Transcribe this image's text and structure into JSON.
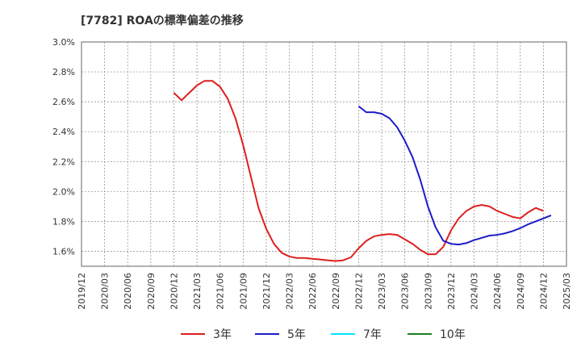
{
  "chart_data": {
    "type": "line",
    "title": "[7782]  ROAの標準偏差の推移",
    "xlabel": "",
    "ylabel": "",
    "ylim": [
      1.5,
      3.0
    ],
    "yticks": [
      1.6,
      1.8,
      2.0,
      2.2,
      2.4,
      2.6,
      2.8,
      3.0
    ],
    "ytick_labels": [
      "1.6%",
      "1.8%",
      "2.0%",
      "2.2%",
      "2.4%",
      "2.6%",
      "2.8%",
      "3.0%"
    ],
    "xtick_labels": [
      "2019/12",
      "2020/03",
      "2020/06",
      "2020/09",
      "2020/12",
      "2021/03",
      "2021/06",
      "2021/09",
      "2021/12",
      "2022/03",
      "2022/06",
      "2022/09",
      "2022/12",
      "2023/03",
      "2023/06",
      "2023/09",
      "2023/12",
      "2024/03",
      "2024/06",
      "2024/09",
      "2024/12",
      "2025/03"
    ],
    "grid": true,
    "legend_position": "bottom",
    "series": [
      {
        "name": "3年",
        "color": "#dd1f1f",
        "start": "2020/12",
        "values": [
          2.66,
          2.61,
          2.66,
          2.71,
          2.74,
          2.74,
          2.7,
          2.62,
          2.49,
          2.31,
          2.1,
          1.89,
          1.75,
          1.65,
          1.59,
          1.565,
          1.555,
          1.555,
          1.55,
          1.545,
          1.54,
          1.535,
          1.54,
          1.56,
          1.62,
          1.67,
          1.7,
          1.71,
          1.715,
          1.71,
          1.68,
          1.65,
          1.61,
          1.58,
          1.58,
          1.63,
          1.74,
          1.82,
          1.87,
          1.9,
          1.91,
          1.9,
          1.87,
          1.85,
          1.83,
          1.82,
          1.86,
          1.89,
          1.87
        ]
      },
      {
        "name": "5年",
        "color": "#1c1cc8",
        "start": "2022/12",
        "values": [
          2.57,
          2.53,
          2.53,
          2.52,
          2.49,
          2.43,
          2.34,
          2.23,
          2.08,
          1.9,
          1.76,
          1.67,
          1.65,
          1.645,
          1.655,
          1.675,
          1.69,
          1.705,
          1.71,
          1.72,
          1.735,
          1.755,
          1.78,
          1.8,
          1.82,
          1.84
        ]
      },
      {
        "name": "7年",
        "color": "#00e5ff",
        "start": "",
        "values": []
      },
      {
        "name": "10年",
        "color": "#1e7d1e",
        "start": "",
        "values": []
      }
    ]
  }
}
